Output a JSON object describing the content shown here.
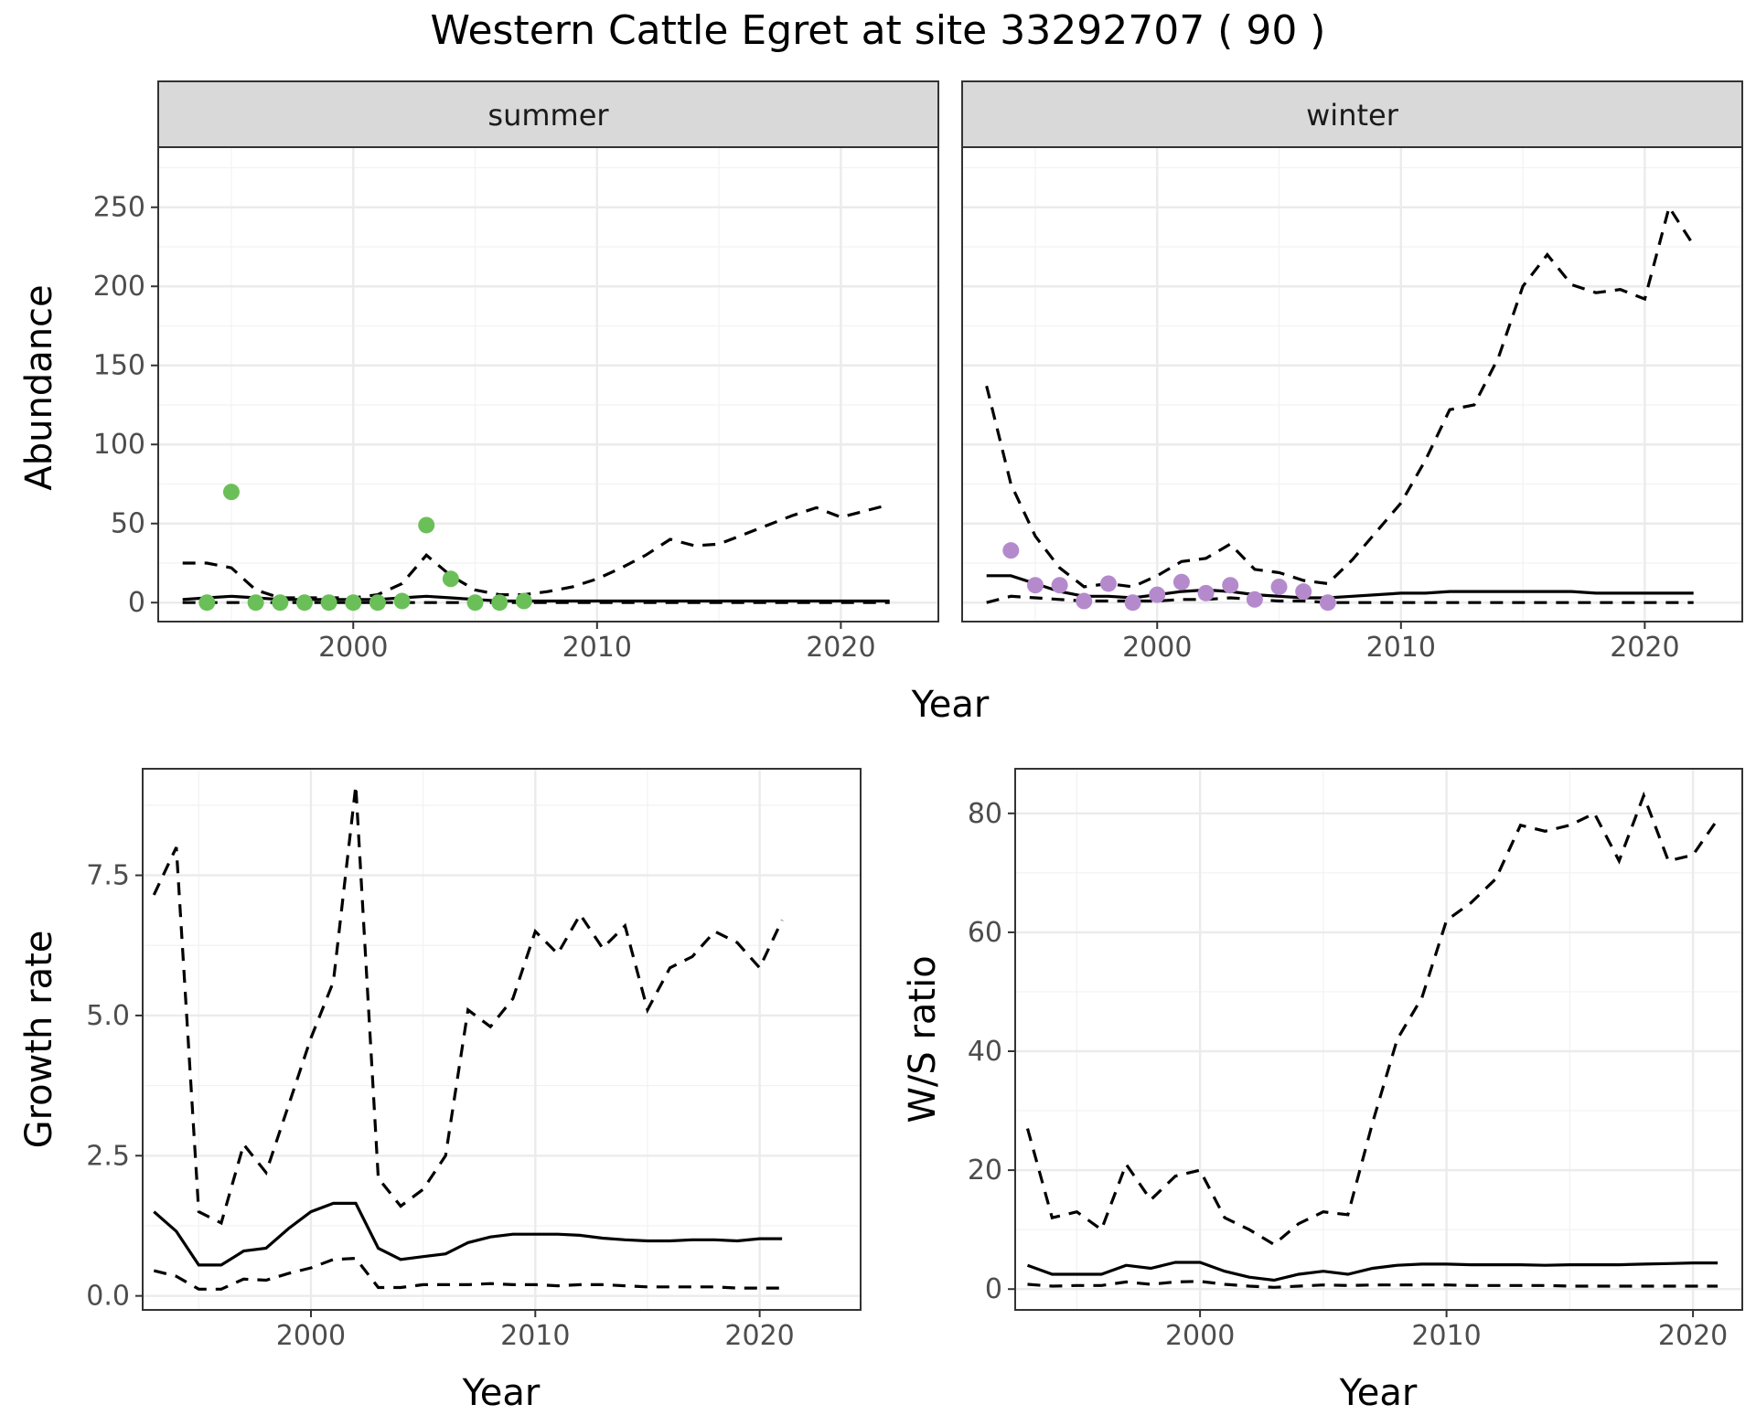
{
  "title": "Western Cattle Egret at site 33292707 ( 90 )",
  "colors": {
    "summer_points": "#6bbf59",
    "winter_points": "#b48acd",
    "lines": "#000000"
  },
  "chart_data": [
    {
      "id": "abundance",
      "type": "line",
      "ylabel": "Abundance",
      "xlabel": "Year",
      "facets": [
        "summer",
        "winter"
      ],
      "xlim": [
        1992,
        2024
      ],
      "ylim": [
        -12,
        288
      ],
      "x_ticks": [
        2000,
        2010,
        2020
      ],
      "y_ticks": [
        0,
        50,
        100,
        150,
        200,
        250
      ],
      "summer": {
        "mean": {
          "x": [
            1993,
            1994,
            1995,
            1996,
            1997,
            1998,
            1999,
            2000,
            2001,
            2002,
            2003,
            2004,
            2005,
            2006,
            2007,
            2008,
            2009,
            2010,
            2011,
            2012,
            2013,
            2014,
            2015,
            2016,
            2017,
            2018,
            2019,
            2020,
            2021,
            2022
          ],
          "y": [
            2,
            3,
            4,
            3,
            2,
            2,
            2,
            2,
            2,
            3,
            4,
            3,
            2,
            1,
            1,
            1,
            1,
            1,
            1,
            1,
            1,
            1,
            1,
            1,
            1,
            1,
            1,
            1,
            1,
            1
          ]
        },
        "lower": {
          "x": [
            1993,
            1994,
            1995,
            1996,
            1997,
            1998,
            1999,
            2000,
            2001,
            2002,
            2003,
            2004,
            2005,
            2006,
            2007,
            2008,
            2009,
            2010,
            2011,
            2012,
            2013,
            2014,
            2015,
            2016,
            2017,
            2018,
            2019,
            2020,
            2021,
            2022
          ],
          "y": [
            0,
            0,
            0,
            0,
            0,
            0,
            0,
            0,
            0,
            0,
            0,
            0,
            0,
            0,
            0,
            0,
            0,
            0,
            0,
            0,
            0,
            0,
            0,
            0,
            0,
            0,
            0,
            0,
            0,
            0
          ]
        },
        "upper": {
          "x": [
            1993,
            1994,
            1995,
            1996,
            1997,
            1998,
            1999,
            2000,
            2001,
            2002,
            2003,
            2004,
            2005,
            2006,
            2007,
            2008,
            2009,
            2010,
            2011,
            2012,
            2013,
            2014,
            2015,
            2016,
            2017,
            2018,
            2019,
            2020,
            2021,
            2022
          ],
          "y": [
            25,
            25,
            22,
            8,
            3,
            3,
            3,
            3,
            5,
            12,
            30,
            17,
            8,
            5,
            5,
            7,
            10,
            15,
            22,
            30,
            40,
            36,
            37,
            43,
            49,
            55,
            60,
            54,
            58,
            62
          ]
        },
        "points": {
          "x": [
            1994,
            1995,
            1996,
            1997,
            1998,
            1999,
            2000,
            2001,
            2002,
            2003,
            2004,
            2005,
            2006,
            2007
          ],
          "y": [
            0,
            70,
            0,
            0,
            0,
            0,
            0,
            0,
            1,
            49,
            15,
            0,
            0,
            1
          ]
        }
      },
      "winter": {
        "mean": {
          "x": [
            1993,
            1994,
            1995,
            1996,
            1997,
            1998,
            1999,
            2000,
            2001,
            2002,
            2003,
            2004,
            2005,
            2006,
            2007,
            2008,
            2009,
            2010,
            2011,
            2012,
            2013,
            2014,
            2015,
            2016,
            2017,
            2018,
            2019,
            2020,
            2021,
            2022
          ],
          "y": [
            17,
            17,
            12,
            7,
            4,
            4,
            3,
            5,
            7,
            8,
            7,
            5,
            4,
            3,
            3,
            4,
            5,
            6,
            6,
            7,
            7,
            7,
            7,
            7,
            7,
            6,
            6,
            6,
            6,
            6
          ]
        },
        "lower": {
          "x": [
            1993,
            1994,
            1995,
            1996,
            1997,
            1998,
            1999,
            2000,
            2001,
            2002,
            2003,
            2004,
            2005,
            2006,
            2007,
            2008,
            2009,
            2010,
            2011,
            2012,
            2013,
            2014,
            2015,
            2016,
            2017,
            2018,
            2019,
            2020,
            2021,
            2022
          ],
          "y": [
            0,
            4,
            3,
            2,
            1,
            1,
            1,
            1,
            2,
            2,
            3,
            2,
            1,
            1,
            0,
            0,
            0,
            0,
            0,
            0,
            0,
            0,
            0,
            0,
            0,
            0,
            0,
            0,
            0,
            0
          ]
        },
        "upper": {
          "x": [
            1993,
            1994,
            1995,
            1996,
            1997,
            1998,
            1999,
            2000,
            2001,
            2002,
            2003,
            2004,
            2005,
            2006,
            2007,
            2008,
            2009,
            2010,
            2011,
            2012,
            2013,
            2014,
            2015,
            2016,
            2017,
            2018,
            2019,
            2020,
            2021,
            2022
          ],
          "y": [
            137,
            75,
            42,
            22,
            10,
            12,
            10,
            17,
            26,
            28,
            37,
            21,
            19,
            14,
            12,
            27,
            45,
            63,
            90,
            122,
            125,
            155,
            200,
            220,
            201,
            196,
            198,
            192,
            250,
            226
          ]
        },
        "points": {
          "x": [
            1994,
            1995,
            1996,
            1997,
            1998,
            1999,
            2000,
            2001,
            2002,
            2003,
            2004,
            2005,
            2006,
            2007
          ],
          "y": [
            33,
            11,
            11,
            1,
            12,
            0,
            5,
            13,
            6,
            11,
            2,
            10,
            7,
            0
          ]
        }
      }
    },
    {
      "id": "growth",
      "type": "line",
      "ylabel": "Growth rate",
      "xlabel": "Year",
      "xlim": [
        1992.5,
        2024.5
      ],
      "ylim": [
        -0.25,
        9.4
      ],
      "x_ticks": [
        2000,
        2010,
        2020
      ],
      "y_ticks": [
        0.0,
        2.5,
        5.0,
        7.5
      ],
      "y_tick_labels": [
        "0.0",
        "2.5",
        "5.0",
        "7.5"
      ],
      "mean": {
        "x": [
          1993,
          1994,
          1995,
          1996,
          1997,
          1998,
          1999,
          2000,
          2001,
          2002,
          2003,
          2004,
          2005,
          2006,
          2007,
          2008,
          2009,
          2010,
          2011,
          2012,
          2013,
          2014,
          2015,
          2016,
          2017,
          2018,
          2019,
          2020,
          2021
        ],
        "y": [
          1.5,
          1.15,
          0.55,
          0.55,
          0.8,
          0.85,
          1.2,
          1.5,
          1.65,
          1.65,
          0.85,
          0.65,
          0.7,
          0.75,
          0.95,
          1.05,
          1.1,
          1.1,
          1.1,
          1.08,
          1.03,
          1.0,
          0.98,
          0.98,
          1.0,
          1.0,
          0.98,
          1.02,
          1.02
        ]
      },
      "lower": {
        "x": [
          1993,
          1994,
          1995,
          1996,
          1997,
          1998,
          1999,
          2000,
          2001,
          2002,
          2003,
          2004,
          2005,
          2006,
          2007,
          2008,
          2009,
          2010,
          2011,
          2012,
          2013,
          2014,
          2015,
          2016,
          2017,
          2018,
          2019,
          2020,
          2021
        ],
        "y": [
          0.45,
          0.35,
          0.12,
          0.12,
          0.3,
          0.28,
          0.4,
          0.5,
          0.65,
          0.67,
          0.15,
          0.15,
          0.2,
          0.2,
          0.2,
          0.22,
          0.2,
          0.2,
          0.18,
          0.2,
          0.2,
          0.18,
          0.16,
          0.16,
          0.16,
          0.16,
          0.14,
          0.14,
          0.14
        ]
      },
      "upper": {
        "x": [
          1993,
          1994,
          1995,
          1996,
          1997,
          1998,
          1999,
          2000,
          2001,
          2002,
          2003,
          2004,
          2005,
          2006,
          2007,
          2008,
          2009,
          2010,
          2011,
          2012,
          2013,
          2014,
          2015,
          2016,
          2017,
          2018,
          2019,
          2020,
          2021
        ],
        "y": [
          7.15,
          8.0,
          1.5,
          1.3,
          2.7,
          2.2,
          3.4,
          4.6,
          5.6,
          9.1,
          2.1,
          1.6,
          1.9,
          2.5,
          5.1,
          4.8,
          5.3,
          6.5,
          6.1,
          6.8,
          6.2,
          6.6,
          5.1,
          5.85,
          6.05,
          6.5,
          6.3,
          5.85,
          6.7
        ]
      }
    },
    {
      "id": "ws_ratio",
      "type": "line",
      "ylabel": "W/S ratio",
      "xlabel": "Year",
      "xlim": [
        1992.5,
        2022
      ],
      "ylim": [
        -3.5,
        87.5
      ],
      "x_ticks": [
        2000,
        2010,
        2020
      ],
      "y_ticks": [
        0,
        20,
        40,
        60,
        80
      ],
      "mean": {
        "x": [
          1993,
          1994,
          1995,
          1996,
          1997,
          1998,
          1999,
          2000,
          2001,
          2002,
          2003,
          2004,
          2005,
          2006,
          2007,
          2008,
          2009,
          2010,
          2011,
          2012,
          2013,
          2014,
          2015,
          2016,
          2017,
          2018,
          2019,
          2020,
          2021
        ],
        "y": [
          4,
          2.5,
          2.5,
          2.5,
          4,
          3.5,
          4.5,
          4.5,
          3,
          2,
          1.5,
          2.5,
          3,
          2.5,
          3.5,
          4,
          4.2,
          4.2,
          4.1,
          4.1,
          4.1,
          4.0,
          4.1,
          4.1,
          4.1,
          4.2,
          4.3,
          4.4,
          4.4
        ]
      },
      "lower": {
        "x": [
          1993,
          1994,
          1995,
          1996,
          1997,
          1998,
          1999,
          2000,
          2001,
          2002,
          2003,
          2004,
          2005,
          2006,
          2007,
          2008,
          2009,
          2010,
          2011,
          2012,
          2013,
          2014,
          2015,
          2016,
          2017,
          2018,
          2019,
          2020,
          2021
        ],
        "y": [
          0.8,
          0.5,
          0.6,
          0.6,
          1.2,
          0.8,
          1.2,
          1.3,
          0.8,
          0.5,
          0.3,
          0.5,
          0.7,
          0.6,
          0.7,
          0.7,
          0.7,
          0.7,
          0.6,
          0.6,
          0.6,
          0.6,
          0.5,
          0.5,
          0.5,
          0.5,
          0.5,
          0.5,
          0.5
        ]
      },
      "upper": {
        "x": [
          1993,
          1994,
          1995,
          1996,
          1997,
          1998,
          1999,
          2000,
          2001,
          2002,
          2003,
          2004,
          2005,
          2006,
          2007,
          2008,
          2009,
          2010,
          2011,
          2012,
          2013,
          2014,
          2015,
          2016,
          2017,
          2018,
          2019,
          2020,
          2021
        ],
        "y": [
          27,
          12,
          13,
          10,
          21,
          15,
          19,
          20,
          12,
          10,
          7.5,
          11,
          13,
          12.5,
          28,
          42,
          49,
          62,
          65,
          69,
          78,
          77,
          78,
          80,
          72,
          83,
          72,
          73,
          79
        ]
      }
    }
  ]
}
